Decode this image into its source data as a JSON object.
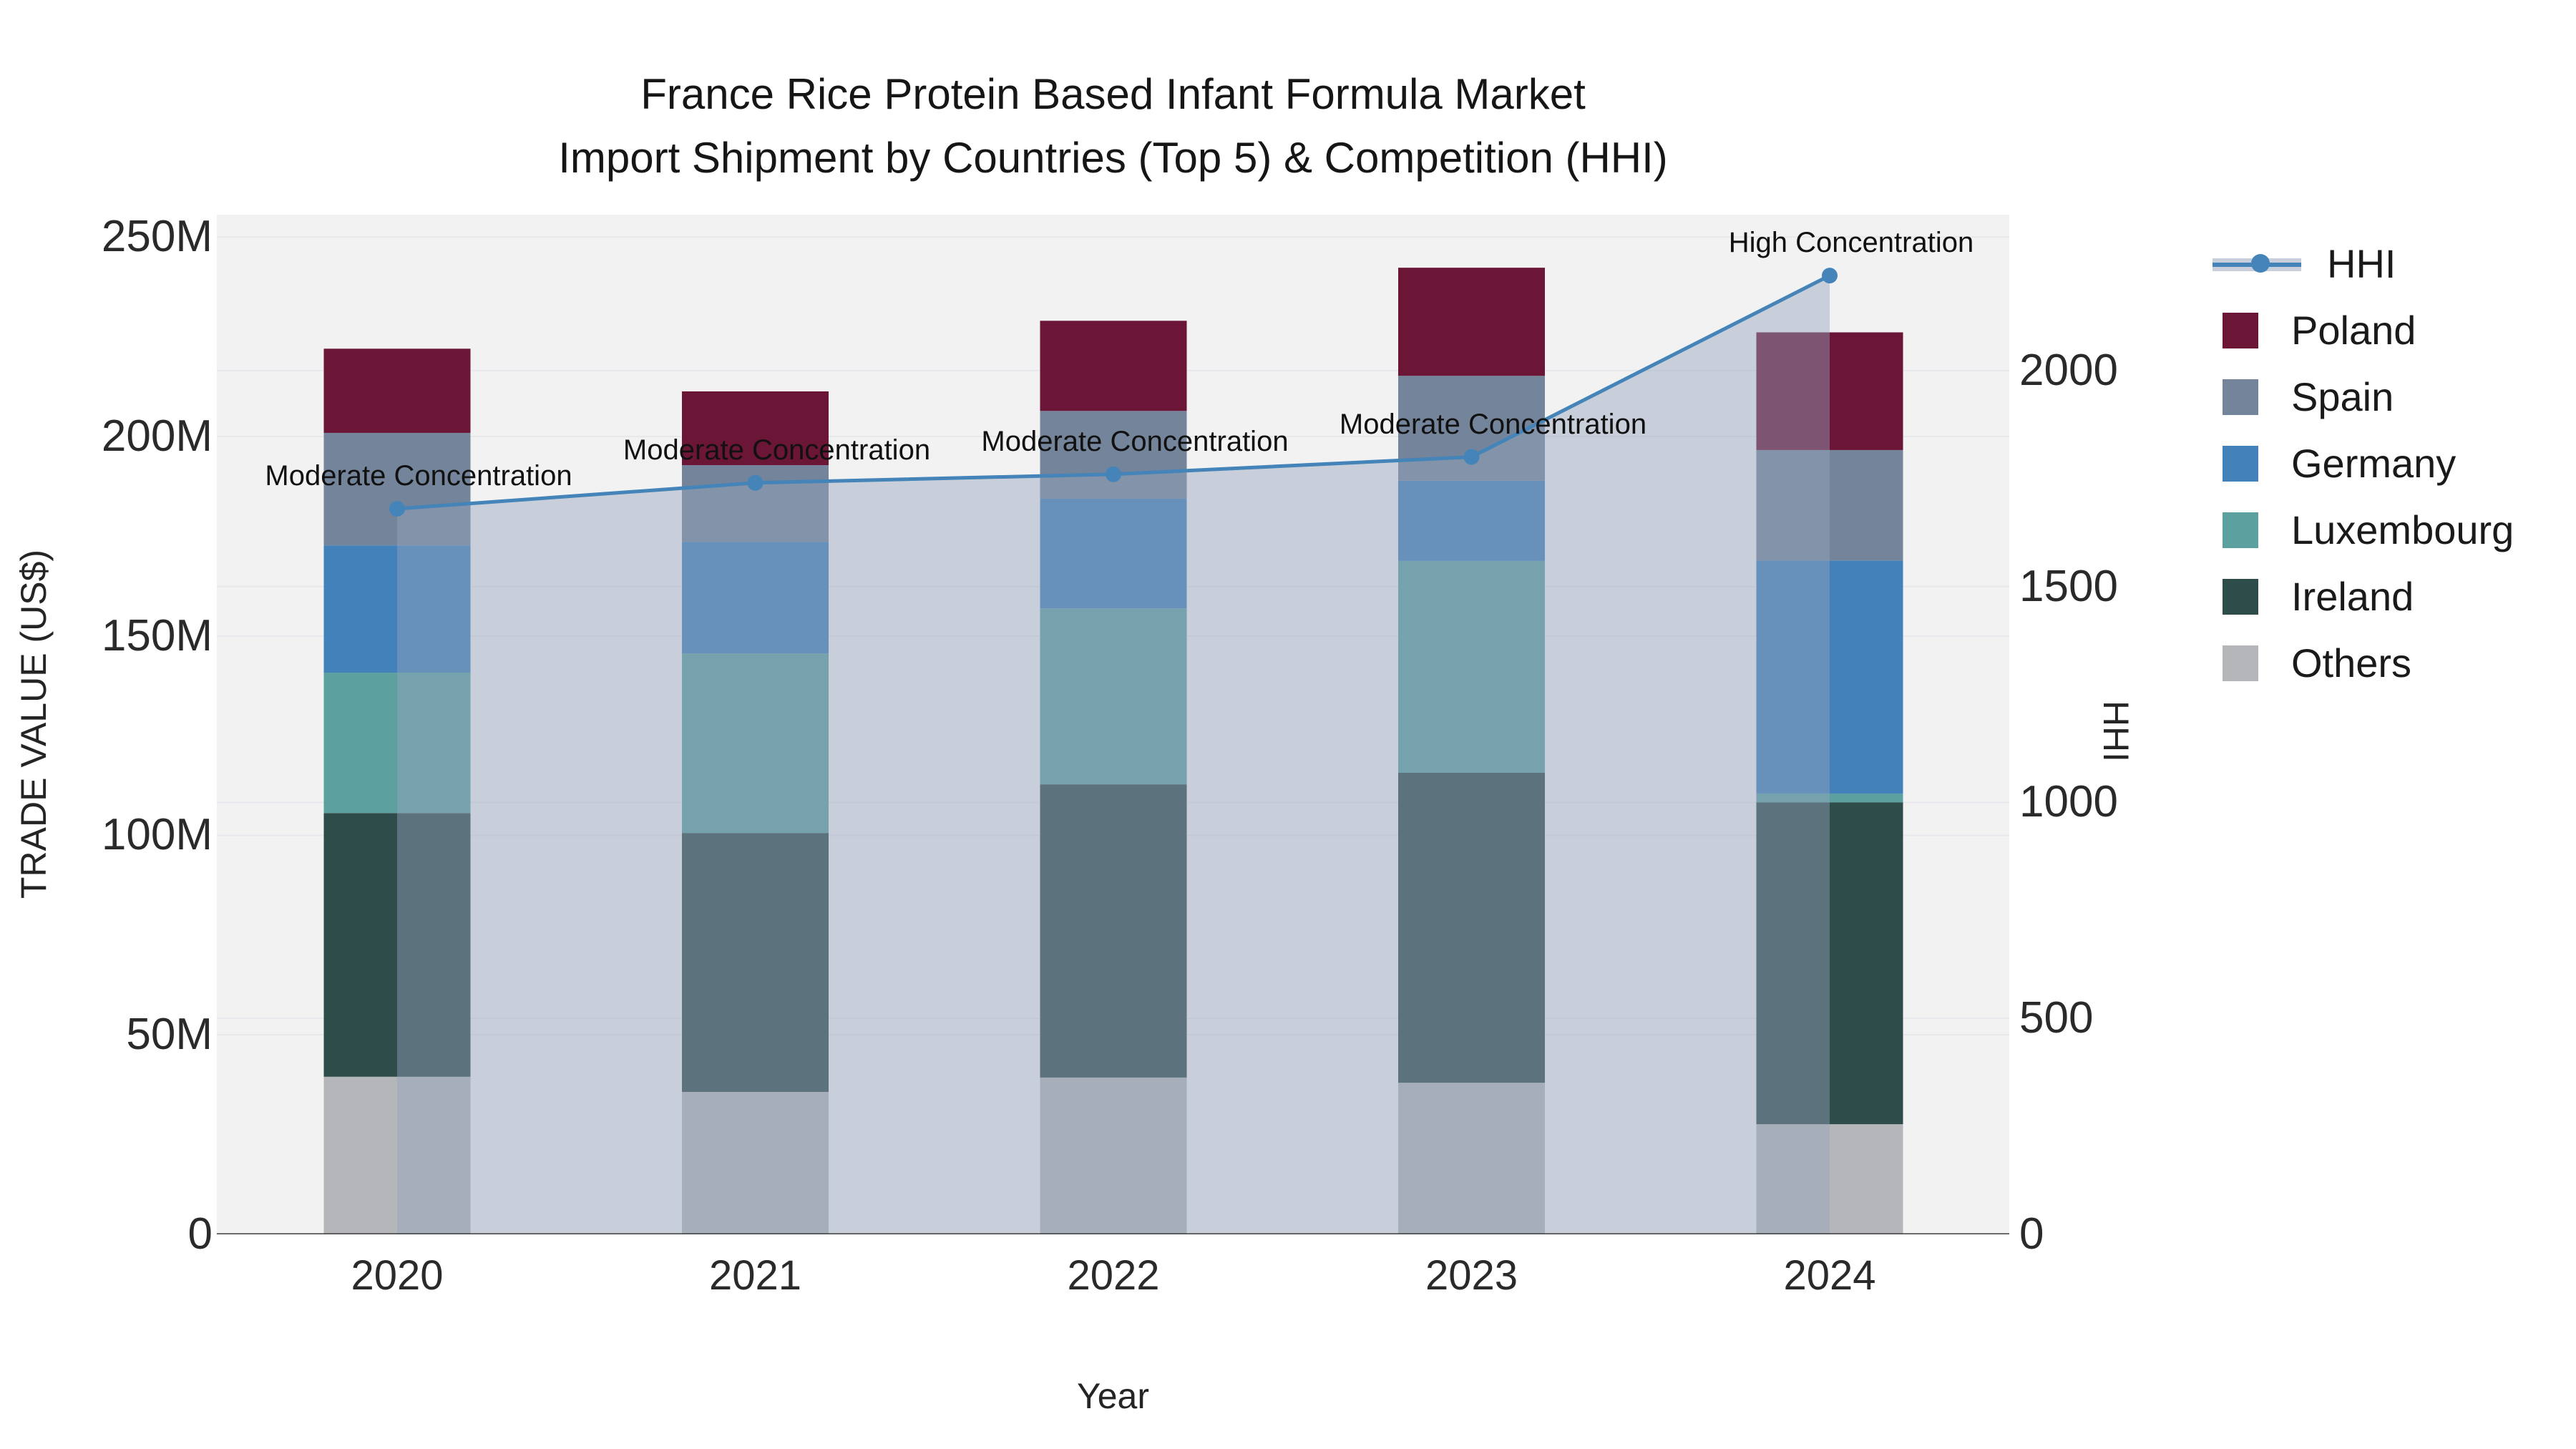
{
  "chart_data": {
    "type": "bar+line",
    "stacked": true,
    "title_line1": "France Rice Protein Based Infant Formula Market",
    "title_line2": "Import Shipment by Countries (Top 5) & Competition (HHI)",
    "xlabel": "Year",
    "ylabel_left": "TRADE VALUE (US$)",
    "ylabel_right": "HHI",
    "unit": "million US$",
    "categories": [
      "2020",
      "2021",
      "2022",
      "2023",
      "2024"
    ],
    "series": [
      {
        "name": "Others",
        "color": "#b4b6b9",
        "values": [
          39.5,
          35.7,
          39.3,
          38.0,
          27.6
        ]
      },
      {
        "name": "Ireland",
        "color": "#2e4c49",
        "values": [
          66.1,
          64.9,
          73.5,
          77.7,
          80.7
        ]
      },
      {
        "name": "Luxembourg",
        "color": "#5ca1a0",
        "values": [
          35.2,
          45.0,
          44.1,
          53.1,
          2.2
        ]
      },
      {
        "name": "Germany",
        "color": "#4381bb",
        "values": [
          31.9,
          28.0,
          27.5,
          20.1,
          58.4
        ]
      },
      {
        "name": "Spain",
        "color": "#74859b",
        "values": [
          28.2,
          19.2,
          22.0,
          26.3,
          27.7
        ]
      },
      {
        "name": "Poland",
        "color": "#6b1537",
        "values": [
          21.1,
          18.5,
          22.6,
          27.1,
          29.5
        ]
      }
    ],
    "bar_totals": [
      222.0,
      211.3,
      229.0,
      242.3,
      226.1
    ],
    "line_series": {
      "name": "HHI",
      "color": "#4484b8",
      "area_color": "rgba(148,164,188,0.45)",
      "values": [
        1680,
        1740,
        1760,
        1800,
        2220
      ]
    },
    "annotations": [
      {
        "category": "2020",
        "label": "Moderate Concentration"
      },
      {
        "category": "2021",
        "label": "Moderate Concentration"
      },
      {
        "category": "2022",
        "label": "Moderate Concentration"
      },
      {
        "category": "2023",
        "label": "Moderate Concentration"
      },
      {
        "category": "2024",
        "label": "High Concentration"
      }
    ],
    "y_left": {
      "tick_labels": [
        "0",
        "50M",
        "100M",
        "150M",
        "200M",
        "250M"
      ],
      "tick_values": [
        0,
        50,
        100,
        150,
        200,
        250
      ],
      "max": 255.6
    },
    "y_right": {
      "tick_labels": [
        "0",
        "500",
        "1000",
        "1500",
        "2000"
      ],
      "tick_values": [
        0,
        500,
        1000,
        1500,
        2000
      ],
      "max": 2361
    },
    "legend_position": "right",
    "grid": true,
    "plot_bg_color": "#f2f2f3",
    "grid_color": "#e7e8ec",
    "axis_line_color": "#3f3f3f"
  }
}
